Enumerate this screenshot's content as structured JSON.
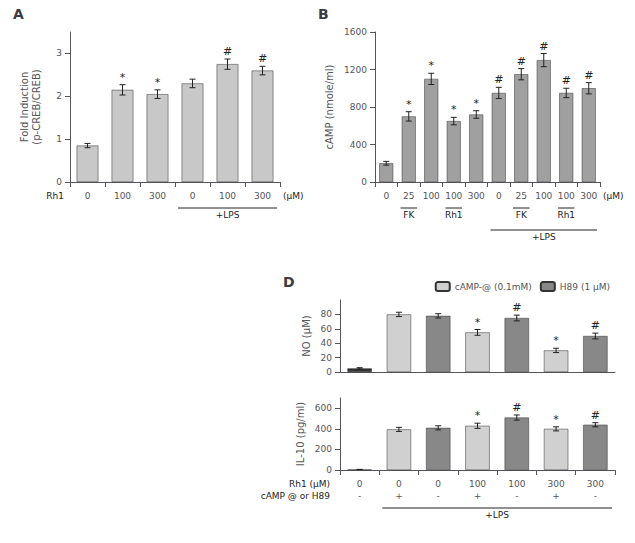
{
  "chart_data": [
    {
      "type": "bar",
      "title": "A",
      "categories": [
        "0",
        "100",
        "300",
        "0",
        "100",
        "300"
      ],
      "category_title": "Rh1",
      "category_unit": "(μM)",
      "group_rows": [
        [
          {
            "label": "+LPS",
            "categories": [
              3,
              4,
              5
            ]
          }
        ]
      ],
      "series": [
        {
          "color": "#c8c8c8",
          "values": [
            0.85,
            2.15,
            2.05,
            2.3,
            2.75,
            2.6
          ],
          "errors": [
            0.05,
            0.12,
            0.1,
            0.1,
            0.12,
            0.1
          ],
          "significance": [
            null,
            "*",
            "*",
            null,
            "#",
            "#"
          ]
        }
      ],
      "ylabel": "Fold Induction\n(p-CREB/CREB)",
      "ylim": [
        0,
        3.5
      ],
      "yticks": [
        0,
        1,
        2,
        3
      ],
      "grid": false
    },
    {
      "type": "bar",
      "title": "B",
      "categories": [
        "0",
        "25",
        "100",
        "100",
        "300",
        "0",
        "25",
        "100",
        "100",
        "300"
      ],
      "category_unit": "(μM)",
      "group_rows": [
        [
          {
            "label": "FK",
            "categories": [
              1
            ]
          },
          {
            "label": "Rh1",
            "categories": [
              3
            ]
          },
          {
            "label": "FK",
            "categories": [
              6
            ]
          },
          {
            "label": "Rh1",
            "categories": [
              8
            ]
          }
        ],
        [
          {
            "label": "+LPS",
            "categories": [
              5,
              6,
              7,
              8,
              9
            ]
          }
        ]
      ],
      "series": [
        {
          "color": "#a0a0a0",
          "values": [
            200,
            700,
            1100,
            650,
            720,
            950,
            1150,
            1300,
            950,
            1000
          ],
          "errors": [
            20,
            50,
            60,
            40,
            40,
            60,
            60,
            70,
            50,
            60
          ],
          "significance": [
            null,
            "*",
            "*",
            "*",
            "*",
            "#",
            "#",
            "#",
            "#",
            "#"
          ]
        }
      ],
      "ylabel": "cAMP (nmole/ml)",
      "ylim": [
        0,
        1600
      ],
      "yticks": [
        0,
        400,
        800,
        1200,
        1600
      ],
      "grid": false
    },
    {
      "type": "bar",
      "title": "D",
      "categories": [
        null,
        null,
        null,
        null,
        null,
        null,
        null
      ],
      "tick_labels": "y",
      "legend": "upper right",
      "series": [
        {
          "color": "#333333",
          "values": [
            5,
            null,
            null,
            null,
            null,
            null,
            null
          ],
          "errors": [
            1,
            null,
            null,
            null,
            null,
            null,
            null
          ],
          "significance": [
            null,
            null,
            null,
            null,
            null,
            null,
            null
          ]
        },
        {
          "name": "cAMP-@ (0.1mM)",
          "color": "#d0d0d0",
          "values": [
            null,
            80,
            null,
            55,
            null,
            30,
            null
          ],
          "errors": [
            null,
            3,
            null,
            4,
            null,
            3,
            null
          ],
          "significance": [
            null,
            null,
            null,
            "*",
            null,
            "*",
            null
          ]
        },
        {
          "name": "H89 (1 μM)",
          "color": "#888888",
          "values": [
            null,
            null,
            78,
            null,
            75,
            null,
            50
          ],
          "errors": [
            null,
            null,
            3,
            null,
            4,
            null,
            4
          ],
          "significance": [
            null,
            null,
            null,
            null,
            "#",
            null,
            "#"
          ]
        }
      ],
      "ylabel": "NO (μM)",
      "ylim": [
        0,
        100
      ],
      "yticks": [
        0,
        20,
        40,
        60,
        80
      ],
      "grid": false
    },
    {
      "type": "bar",
      "categories": [
        null,
        null,
        null,
        null,
        null,
        null,
        null
      ],
      "label_rows": [
        {
          "label": "Rh1 (μM)",
          "values": [
            "0",
            "0",
            "0",
            "100",
            "100",
            "300",
            "300"
          ]
        },
        {
          "label": "cAMP @ or H89",
          "values": [
            "-",
            "+",
            "-",
            "+",
            "-",
            "+",
            "-"
          ]
        }
      ],
      "group_rows": [
        [
          {
            "label": "+LPS",
            "categories": [
              1,
              2,
              3,
              4,
              5,
              6
            ]
          }
        ]
      ],
      "series": [
        {
          "color": "#333333",
          "values": [
            5,
            null,
            null,
            null,
            null,
            null,
            null
          ],
          "errors": [
            1,
            null,
            null,
            null,
            null,
            null,
            null
          ],
          "significance": [
            null,
            null,
            null,
            null,
            null,
            null,
            null
          ]
        },
        {
          "name": "cAMP-@ (0.1mM)",
          "color": "#d0d0d0",
          "values": [
            null,
            395,
            null,
            430,
            null,
            400,
            null
          ],
          "errors": [
            null,
            20,
            null,
            25,
            null,
            20,
            null
          ],
          "significance": [
            null,
            null,
            null,
            "*",
            null,
            "*",
            null
          ]
        },
        {
          "name": "H89 (1 μM)",
          "color": "#888888",
          "values": [
            null,
            null,
            410,
            null,
            510,
            null,
            440
          ],
          "errors": [
            null,
            null,
            20,
            null,
            25,
            null,
            20
          ],
          "significance": [
            null,
            null,
            null,
            null,
            "#",
            null,
            "#"
          ]
        }
      ],
      "ylabel": "IL-10 (pg/ml)",
      "ylim": [
        0,
        700
      ],
      "yticks": [
        0,
        200,
        400,
        600
      ],
      "grid": false
    }
  ]
}
